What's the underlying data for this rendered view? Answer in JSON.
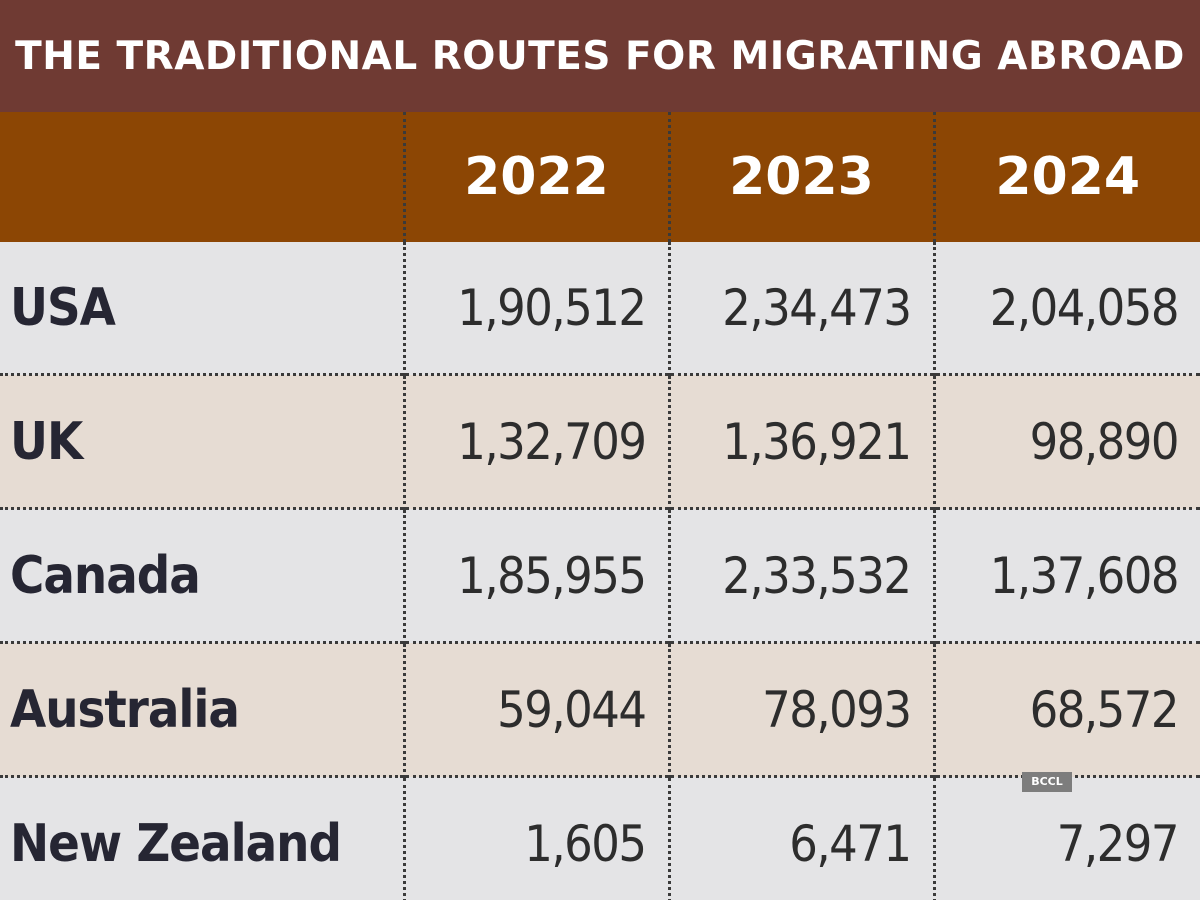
{
  "title": "THE TRADITIONAL ROUTES FOR MIGRATING ABROAD",
  "watermark": "BCCL",
  "chart_data": {
    "type": "table",
    "title": "THE TRADITIONAL ROUTES FOR MIGRATING ABROAD",
    "columns": [
      "2022",
      "2023",
      "2024"
    ],
    "rows": [
      {
        "label": "USA",
        "values": [
          "1,90,512",
          "2,34,473",
          "2,04,058"
        ]
      },
      {
        "label": "UK",
        "values": [
          "1,32,709",
          "1,36,921",
          "98,890"
        ]
      },
      {
        "label": "Canada",
        "values": [
          "1,85,955",
          "2,33,532",
          "1,37,608"
        ]
      },
      {
        "label": "Australia",
        "values": [
          "59,044",
          "78,093",
          "68,572"
        ]
      },
      {
        "label": "New Zealand",
        "values": [
          "1,605",
          "6,471",
          "7,297"
        ]
      }
    ]
  },
  "colors": {
    "title_bg": "#6f3a33",
    "header_bg": "#8c4604",
    "row_even_bg": "#e4e4e6",
    "row_odd_bg": "#e6dcd3"
  }
}
